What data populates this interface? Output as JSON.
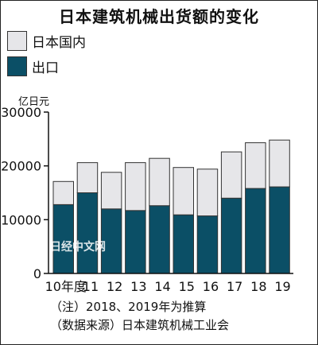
{
  "title": "日本建筑机械出货额的变化",
  "legend": [
    {
      "label": "日本国内",
      "color": "#e6e6e9"
    },
    {
      "label": "出口",
      "color": "#0b4f66"
    }
  ],
  "unit": "亿日元",
  "watermark": "日经中文网",
  "notes": [
    "（注）2018、2019年为推算",
    "（数据来源）日本建筑机械工业会"
  ],
  "chart_data": {
    "type": "bar",
    "stacked": true,
    "title": "日本建筑机械出货额的变化",
    "ylabel": "亿日元",
    "ylim": [
      0,
      30000
    ],
    "yticks": [
      "0",
      "10000",
      "20000",
      "30000"
    ],
    "categories": [
      "10年度",
      "11",
      "12",
      "13",
      "14",
      "15",
      "16",
      "17",
      "18",
      "19"
    ],
    "series": [
      {
        "name": "出口",
        "color": "#0b4f66",
        "values": [
          12800,
          15000,
          12000,
          11700,
          12600,
          10900,
          10700,
          14000,
          15800,
          16100
        ]
      },
      {
        "name": "日本国内",
        "color": "#e6e6e9",
        "values": [
          4300,
          5600,
          6800,
          8900,
          8800,
          8800,
          8700,
          8600,
          8500,
          8700
        ]
      }
    ]
  }
}
